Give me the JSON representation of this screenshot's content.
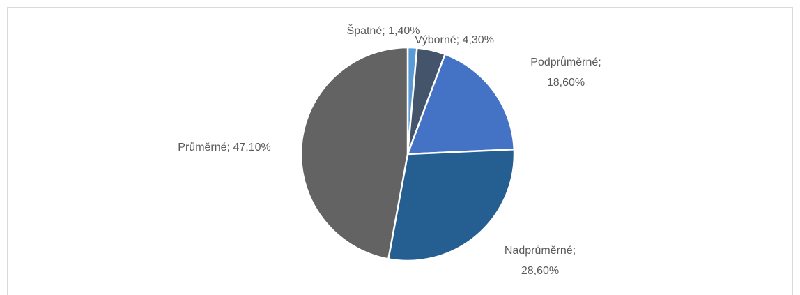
{
  "chart_data": {
    "type": "pie",
    "values": [
      1.4,
      4.3,
      18.6,
      28.6,
      47.1
    ],
    "value_labels": [
      "Špatné; 1,40%",
      "Výborné; 4,30%",
      "Podprůměrné; 18,60%",
      "Nadprůměrné; 28,60%",
      "Průměrné; 47,10%"
    ],
    "colors": [
      "#5b9bd5",
      "#44546a",
      "#4472c4",
      "#255e91",
      "#636363"
    ]
  }
}
